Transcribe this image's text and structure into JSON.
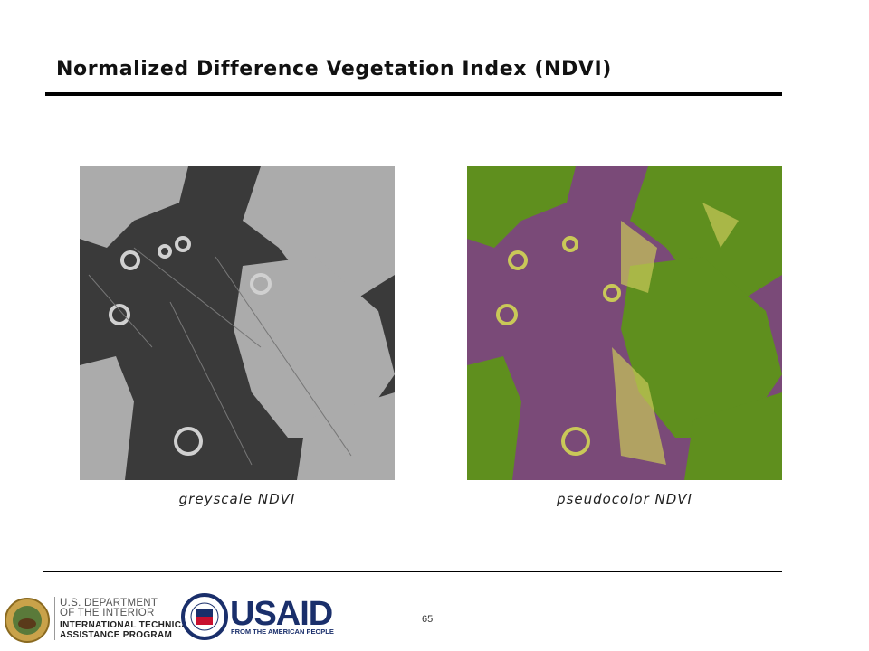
{
  "header": {
    "title": "Normalized Difference Vegetation Index (NDVI)"
  },
  "figures": [
    {
      "caption": "greyscale NDVI"
    },
    {
      "caption": "pseudocolor NDVI"
    }
  ],
  "footer": {
    "doi": [
      "U.S. DEPARTMENT",
      "OF THE INTERIOR",
      "INTERNATIONAL TECHNICAL",
      "ASSISTANCE PROGRAM"
    ],
    "usaid": "USAID",
    "usaid_tagline": "FROM THE AMERICAN PEOPLE",
    "page_number": "65"
  }
}
